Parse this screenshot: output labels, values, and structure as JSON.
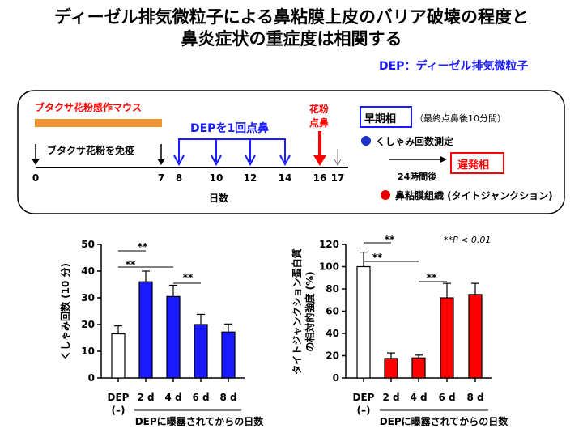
{
  "title": {
    "line1": "ディーゼル排気微粒子による鼻粘膜上皮のバリア破壊の程度と",
    "line2": "鼻炎症状の重症度は相関する"
  },
  "abbrev": {
    "key": "DEP",
    "sep": "：",
    "meaning": "ディーゼル排気微粒子"
  },
  "protocol": {
    "mouse_label": "ブタクサ花粉感作マウス",
    "immunize_label": "ブタクサ花粉を免疫",
    "dep_label": "DEPを1回点鼻",
    "pollen_label_1": "花粉",
    "pollen_label_2": "点鼻",
    "day_axis_label": "日数",
    "day_ticks": [
      "0",
      "7",
      "8",
      "10",
      "12",
      "14",
      "16",
      "17"
    ],
    "early_phase": "早期相",
    "early_note": "（最終点鼻後10分間）",
    "sneeze_measure": "くしゃみ回数測定",
    "hours_label": "24時間後",
    "late_phase": "遅発相",
    "tissue_label": "鼻粘膜組織 (タイトジャンクション)",
    "colors": {
      "dep": "#1a1aff",
      "pollen": "#ff0000",
      "bar": "#f0962e",
      "blue_dot": "#1a33cc",
      "red_dot": "#e60000"
    }
  },
  "sig": {
    "pvalue_label": "**P < 0.01",
    "marker": "**"
  },
  "chart_data": [
    {
      "type": "bar",
      "ylabel": "くしゃみ回数 (10 分)",
      "xlabel": "DEPに曝露されてからの日数",
      "categories": [
        "DEP",
        "2 d",
        "4 d",
        "6 d",
        "8 d"
      ],
      "control_sub": "(–)",
      "values": [
        16.5,
        36,
        30.5,
        20,
        17.2
      ],
      "errors": [
        3,
        4,
        4.2,
        3.8,
        3
      ],
      "colors": [
        "#ffffff",
        "#1a1aff",
        "#1a1aff",
        "#1a1aff",
        "#1a1aff"
      ],
      "ylim": [
        0,
        50
      ],
      "yticks": [
        "0",
        "10",
        "20",
        "30",
        "40",
        "50"
      ],
      "significance": [
        {
          "from": 0,
          "to": 1,
          "label": "**"
        },
        {
          "from": 0,
          "to": 2,
          "label": "**"
        },
        {
          "from": 2,
          "to": 3,
          "label": "**"
        }
      ]
    },
    {
      "type": "bar",
      "ylabel": "タイトジャンクション蛋白質",
      "ylabel2": "の相対的強度 (%)",
      "xlabel": "DEPに曝露されてからの日数",
      "categories": [
        "DEP",
        "2 d",
        "4 d",
        "6 d",
        "8 d"
      ],
      "control_sub": "(–)",
      "values": [
        100,
        17.5,
        18,
        72,
        75
      ],
      "errors": [
        13,
        5,
        2.5,
        13,
        10
      ],
      "colors": [
        "#ffffff",
        "#ff0000",
        "#ff0000",
        "#ff0000",
        "#ff0000"
      ],
      "ylim": [
        0,
        120
      ],
      "yticks": [
        "0",
        "20",
        "40",
        "60",
        "80",
        "100",
        "120"
      ],
      "significance": [
        {
          "from": 0,
          "to": 1,
          "label": "**"
        },
        {
          "from": 0,
          "to": 2,
          "label": "**"
        },
        {
          "from": 2,
          "to": 3,
          "label": "**"
        }
      ]
    }
  ]
}
